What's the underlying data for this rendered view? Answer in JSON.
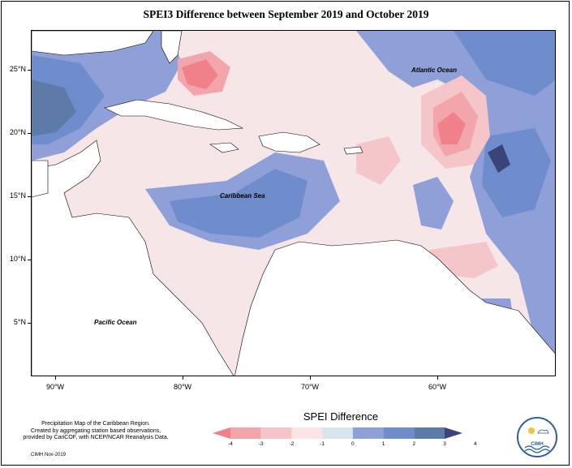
{
  "title": "SPEI3 Difference between September 2019 and October 2019",
  "y_ticks": [
    "25°N",
    "20°N",
    "15°N",
    "10°N",
    "5°N"
  ],
  "x_ticks": [
    "90°W",
    "80°W",
    "70°W",
    "60°W"
  ],
  "labels": {
    "atlantic": "Atlantic Ocean",
    "caribbean": "Caribbean Sea",
    "pacific": "Pacific Ocean"
  },
  "caption": {
    "line1": "Precipitation Map of the Caribbean Region.",
    "line2": "Created by aggregating station based observations,",
    "line3": "provided by CariCOF, with NCEP/NCAR Reanalysis Data."
  },
  "credit": "CIMH Nov-2019",
  "legend": {
    "title": "SPEI Difference",
    "labels": [
      "-4",
      "-3",
      "-2",
      "-1",
      "0",
      "1",
      "2",
      "3",
      "4"
    ],
    "colors": [
      "#f0808a",
      "#f2a6ac",
      "#f4c6c9",
      "#fae4e6",
      "#d7e6ec",
      "#8f9fd8",
      "#6f8ccc",
      "#5e7aa6",
      "#3a4478"
    ]
  },
  "logo": {
    "name": "CIMH",
    "icon": "cimh-logo-icon"
  }
}
